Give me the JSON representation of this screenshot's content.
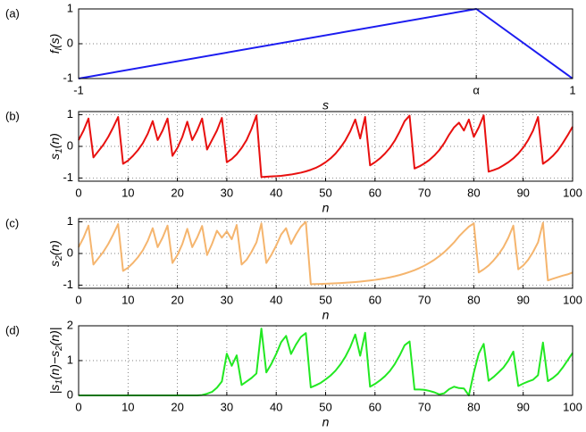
{
  "chart_data": [
    {
      "type": "line",
      "panel_label": "(a)",
      "xlabel": "s",
      "ylabel": [
        "f",
        "l",
        "(s)"
      ],
      "x": [
        -1,
        0.61,
        1
      ],
      "values": [
        -1,
        1,
        -1
      ],
      "color": "#1c1cf0",
      "xlim": [
        -1,
        1
      ],
      "ylim": [
        -1,
        1
      ],
      "xticks": [
        -1,
        {
          "value": 0.61,
          "label": "α"
        },
        1
      ],
      "yticks": [
        -1,
        0,
        1
      ],
      "grid": true
    },
    {
      "type": "line",
      "panel_label": "(b)",
      "xlabel": "n",
      "ylabel": [
        "s",
        "1",
        "(n)"
      ],
      "x": [
        0,
        1,
        2,
        3,
        4,
        5,
        6,
        7,
        8,
        9,
        10,
        11,
        12,
        13,
        14,
        15,
        16,
        17,
        18,
        19,
        20,
        21,
        22,
        23,
        24,
        25,
        26,
        27,
        28,
        29,
        30,
        31,
        32,
        33,
        34,
        35,
        36,
        37,
        38,
        39,
        40,
        41,
        42,
        43,
        44,
        45,
        46,
        47,
        48,
        49,
        50,
        51,
        52,
        53,
        54,
        55,
        56,
        57,
        58,
        59,
        60,
        61,
        62,
        63,
        64,
        65,
        66,
        67,
        68,
        69,
        70,
        71,
        72,
        73,
        74,
        75,
        76,
        77,
        78,
        79,
        80,
        81,
        82,
        83,
        84,
        85,
        86,
        87,
        88,
        89,
        90,
        91,
        92,
        93,
        94,
        95,
        96,
        97,
        98,
        99,
        100
      ],
      "values": [
        0.2,
        0.5,
        0.88,
        -0.35,
        -0.15,
        0.05,
        0.3,
        0.6,
        0.93,
        -0.55,
        -0.45,
        -0.3,
        -0.12,
        0.1,
        0.4,
        0.8,
        0.2,
        0.5,
        0.88,
        -0.3,
        -0.05,
        0.3,
        0.78,
        0.2,
        0.5,
        0.88,
        -0.1,
        0.2,
        0.5,
        0.9,
        -0.5,
        -0.4,
        -0.25,
        -0.05,
        0.2,
        0.55,
        0.98,
        -0.97,
        -0.96,
        -0.95,
        -0.94,
        -0.93,
        -0.91,
        -0.89,
        -0.86,
        -0.83,
        -0.79,
        -0.74,
        -0.68,
        -0.6,
        -0.5,
        -0.38,
        -0.23,
        -0.04,
        0.19,
        0.48,
        0.85,
        0.25,
        0.93,
        -0.6,
        -0.5,
        -0.38,
        -0.23,
        -0.05,
        0.18,
        0.47,
        0.8,
        0.97,
        -0.7,
        -0.63,
        -0.54,
        -0.43,
        -0.29,
        -0.12,
        0.1,
        0.37,
        0.6,
        0.75,
        0.5,
        0.85,
        0.3,
        0.6,
        0.98,
        -0.8,
        -0.75,
        -0.69,
        -0.6,
        -0.5,
        -0.38,
        -0.23,
        -0.04,
        0.2,
        0.5,
        0.93,
        -0.55,
        -0.44,
        -0.3,
        -0.13,
        0.1,
        0.35,
        0.62
      ],
      "color": "#e8100f",
      "xlim": [
        0,
        100
      ],
      "ylim": [
        -1.1,
        1.1
      ],
      "xticks": [
        0,
        10,
        20,
        30,
        40,
        50,
        60,
        70,
        80,
        90,
        100
      ],
      "yticks": [
        -1,
        0,
        1
      ],
      "grid": true
    },
    {
      "type": "line",
      "panel_label": "(c)",
      "xlabel": "n",
      "ylabel": [
        "s",
        "2",
        "(n)"
      ],
      "x": [
        0,
        1,
        2,
        3,
        4,
        5,
        6,
        7,
        8,
        9,
        10,
        11,
        12,
        13,
        14,
        15,
        16,
        17,
        18,
        19,
        20,
        21,
        22,
        23,
        24,
        25,
        26,
        27,
        28,
        29,
        30,
        31,
        32,
        33,
        34,
        35,
        36,
        37,
        38,
        39,
        40,
        41,
        42,
        43,
        44,
        45,
        46,
        47,
        48,
        49,
        50,
        51,
        52,
        53,
        54,
        55,
        56,
        57,
        58,
        59,
        60,
        61,
        62,
        63,
        64,
        65,
        66,
        67,
        68,
        69,
        70,
        71,
        72,
        73,
        74,
        75,
        76,
        77,
        78,
        79,
        80,
        81,
        82,
        83,
        84,
        85,
        86,
        87,
        88,
        89,
        90,
        91,
        92,
        93,
        94,
        95,
        96,
        97,
        98,
        99,
        100
      ],
      "values": [
        0.2,
        0.5,
        0.88,
        -0.35,
        -0.15,
        0.05,
        0.3,
        0.6,
        0.93,
        -0.55,
        -0.45,
        -0.3,
        -0.12,
        0.1,
        0.4,
        0.8,
        0.2,
        0.5,
        0.88,
        -0.3,
        -0.05,
        0.3,
        0.78,
        0.2,
        0.5,
        0.87,
        -0.05,
        0.3,
        0.72,
        0.5,
        0.7,
        0.45,
        0.9,
        -0.35,
        -0.2,
        0.05,
        0.35,
        0.95,
        -0.3,
        -0.05,
        0.25,
        0.6,
        0.8,
        0.3,
        0.6,
        0.85,
        1.0,
        -0.97,
        -0.966,
        -0.961,
        -0.955,
        -0.949,
        -0.942,
        -0.934,
        -0.924,
        -0.914,
        -0.902,
        -0.888,
        -0.872,
        -0.854,
        -0.834,
        -0.81,
        -0.784,
        -0.754,
        -0.719,
        -0.68,
        -0.635,
        -0.584,
        -0.526,
        -0.459,
        -0.384,
        -0.297,
        -0.2,
        -0.087,
        0.04,
        0.19,
        0.35,
        0.54,
        0.7,
        0.85,
        0.95,
        -0.6,
        -0.5,
        -0.38,
        -0.22,
        -0.03,
        0.2,
        0.5,
        0.88,
        -0.5,
        -0.38,
        -0.2,
        0.05,
        0.35,
        0.97,
        -0.85,
        -0.8,
        -0.75,
        -0.7,
        -0.66,
        -0.6
      ],
      "color": "#f5b56e",
      "xlim": [
        0,
        100
      ],
      "ylim": [
        -1.1,
        1.1
      ],
      "xticks": [
        0,
        10,
        20,
        30,
        40,
        50,
        60,
        70,
        80,
        90,
        100
      ],
      "yticks": [
        -1,
        0,
        1
      ],
      "grid": true
    },
    {
      "type": "line",
      "panel_label": "(d)",
      "xlabel": "n",
      "ylabel": [
        "|s",
        "1",
        "(n)−s",
        "2",
        "(n)|"
      ],
      "x": [
        0,
        1,
        2,
        3,
        4,
        5,
        6,
        7,
        8,
        9,
        10,
        11,
        12,
        13,
        14,
        15,
        16,
        17,
        18,
        19,
        20,
        21,
        22,
        23,
        24,
        25,
        26,
        27,
        28,
        29,
        30,
        31,
        32,
        33,
        34,
        35,
        36,
        37,
        38,
        39,
        40,
        41,
        42,
        43,
        44,
        45,
        46,
        47,
        48,
        49,
        50,
        51,
        52,
        53,
        54,
        55,
        56,
        57,
        58,
        59,
        60,
        61,
        62,
        63,
        64,
        65,
        66,
        67,
        68,
        69,
        70,
        71,
        72,
        73,
        74,
        75,
        76,
        77,
        78,
        79,
        80,
        81,
        82,
        83,
        84,
        85,
        86,
        87,
        88,
        89,
        90,
        91,
        92,
        93,
        94,
        95,
        96,
        97,
        98,
        99,
        100
      ],
      "values": [
        0,
        0,
        0,
        0,
        0,
        0,
        0,
        0,
        0,
        0,
        0,
        0,
        0,
        0,
        0,
        0,
        0,
        0,
        0,
        0,
        0,
        0,
        0,
        0,
        0,
        0.01,
        0.05,
        0.1,
        0.22,
        0.4,
        1.2,
        0.85,
        1.15,
        0.3,
        0.4,
        0.5,
        0.63,
        1.92,
        0.66,
        0.9,
        1.19,
        1.53,
        1.71,
        1.19,
        1.46,
        1.68,
        1.79,
        0.23,
        0.29,
        0.36,
        0.46,
        0.57,
        0.71,
        0.89,
        1.11,
        1.39,
        1.75,
        1.14,
        1.8,
        0.25,
        0.33,
        0.43,
        0.55,
        0.7,
        0.9,
        1.15,
        1.44,
        1.55,
        0.17,
        0.17,
        0.16,
        0.13,
        0.09,
        0.03,
        0.06,
        0.18,
        0.25,
        0.21,
        0.2,
        0,
        0.65,
        1.2,
        1.48,
        0.42,
        0.53,
        0.66,
        0.8,
        1.0,
        1.26,
        0.27,
        0.34,
        0.4,
        0.45,
        0.58,
        1.52,
        0.41,
        0.5,
        0.62,
        0.8,
        1.01,
        1.22
      ],
      "color": "#22e822",
      "xlim": [
        0,
        100
      ],
      "ylim": [
        0,
        2
      ],
      "xticks": [
        0,
        10,
        20,
        30,
        40,
        50,
        60,
        70,
        80,
        90,
        100
      ],
      "yticks": [
        0,
        1,
        2
      ],
      "grid": true
    }
  ]
}
